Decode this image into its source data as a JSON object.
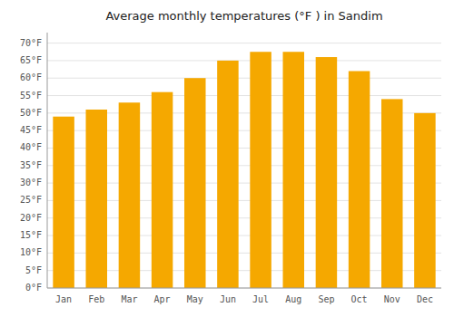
{
  "chart_data": {
    "type": "bar",
    "title": "Average monthly temperatures (°F ) in Sandim",
    "categories": [
      "Jan",
      "Feb",
      "Mar",
      "Apr",
      "May",
      "Jun",
      "Jul",
      "Aug",
      "Sep",
      "Oct",
      "Nov",
      "Dec"
    ],
    "values": [
      49,
      51,
      53,
      56,
      60,
      65,
      67.5,
      67.5,
      66,
      62,
      54,
      50
    ],
    "color": "#F5A800",
    "ylim": [
      0,
      73
    ],
    "yticks": [
      {
        "value": 0,
        "label": "0°F"
      },
      {
        "value": 5,
        "label": "5°F"
      },
      {
        "value": 10,
        "label": "10°F"
      },
      {
        "value": 15,
        "label": "15°F"
      },
      {
        "value": 20,
        "label": "20°F"
      },
      {
        "value": 25,
        "label": "25°F"
      },
      {
        "value": 30,
        "label": "30°F"
      },
      {
        "value": 35,
        "label": "35°F"
      },
      {
        "value": 40,
        "label": "40°F"
      },
      {
        "value": 45,
        "label": "45°F"
      },
      {
        "value": 50,
        "label": "50°F"
      },
      {
        "value": 55,
        "label": "55°F"
      },
      {
        "value": 60,
        "label": "60°F"
      },
      {
        "value": 65,
        "label": "65°F"
      },
      {
        "value": 70,
        "label": "70°F"
      }
    ],
    "grid": true
  }
}
